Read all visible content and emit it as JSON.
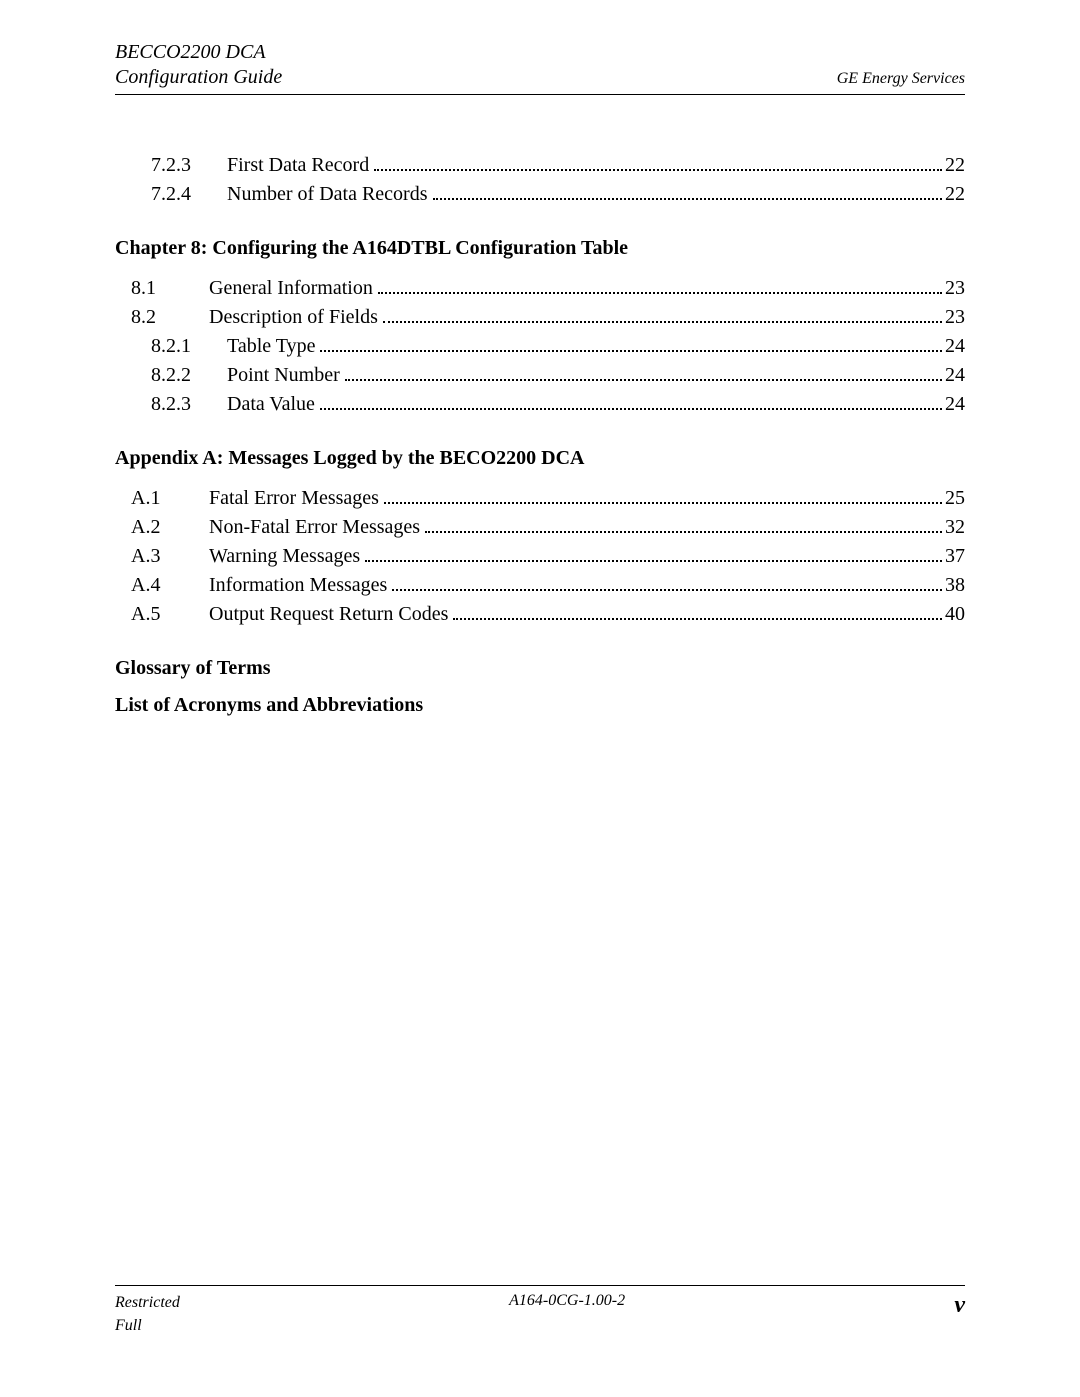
{
  "header": {
    "left_line1": "BECCO2200 DCA",
    "left_line2": "Configuration Guide",
    "right": "GE Energy Services"
  },
  "pre_block": {
    "rows": [
      {
        "num": "7.2.3",
        "title": "First Data Record",
        "page": "22",
        "indent": 2
      },
      {
        "num": "7.2.4",
        "title": "Number of Data Records",
        "page": "22",
        "indent": 2
      }
    ]
  },
  "chapter8": {
    "heading": "Chapter 8: Configuring the A164DTBL Configuration Table",
    "rows": [
      {
        "num": "8.1",
        "title": "General Information",
        "page": "23",
        "indent": 1
      },
      {
        "num": "8.2",
        "title": "Description of Fields",
        "page": "23",
        "indent": 1
      },
      {
        "num": "8.2.1",
        "title": "Table Type",
        "page": "24",
        "indent": 2
      },
      {
        "num": "8.2.2",
        "title": "Point Number",
        "page": "24",
        "indent": 2
      },
      {
        "num": "8.2.3",
        "title": "Data Value",
        "page": "24",
        "indent": 2
      }
    ]
  },
  "appendixA": {
    "heading": "Appendix A: Messages Logged by the BECO2200 DCA",
    "rows": [
      {
        "num": "A.1",
        "title": "Fatal Error Messages",
        "page": "25",
        "indent": 1
      },
      {
        "num": "A.2",
        "title": "Non-Fatal Error Messages",
        "page": "32",
        "indent": 1
      },
      {
        "num": "A.3",
        "title": "Warning Messages",
        "page": "37",
        "indent": 1
      },
      {
        "num": "A.4",
        "title": "Information Messages",
        "page": "38",
        "indent": 1
      },
      {
        "num": "A.5",
        "title": "Output Request Return Codes",
        "page": "40",
        "indent": 1
      }
    ]
  },
  "glossary_heading": "Glossary of Terms",
  "acronyms_heading": "List of Acronyms and Abbreviations",
  "footer": {
    "left_line1": "Restricted",
    "left_line2": "Full",
    "center": "A164-0CG-1.00-2",
    "right": "v"
  }
}
